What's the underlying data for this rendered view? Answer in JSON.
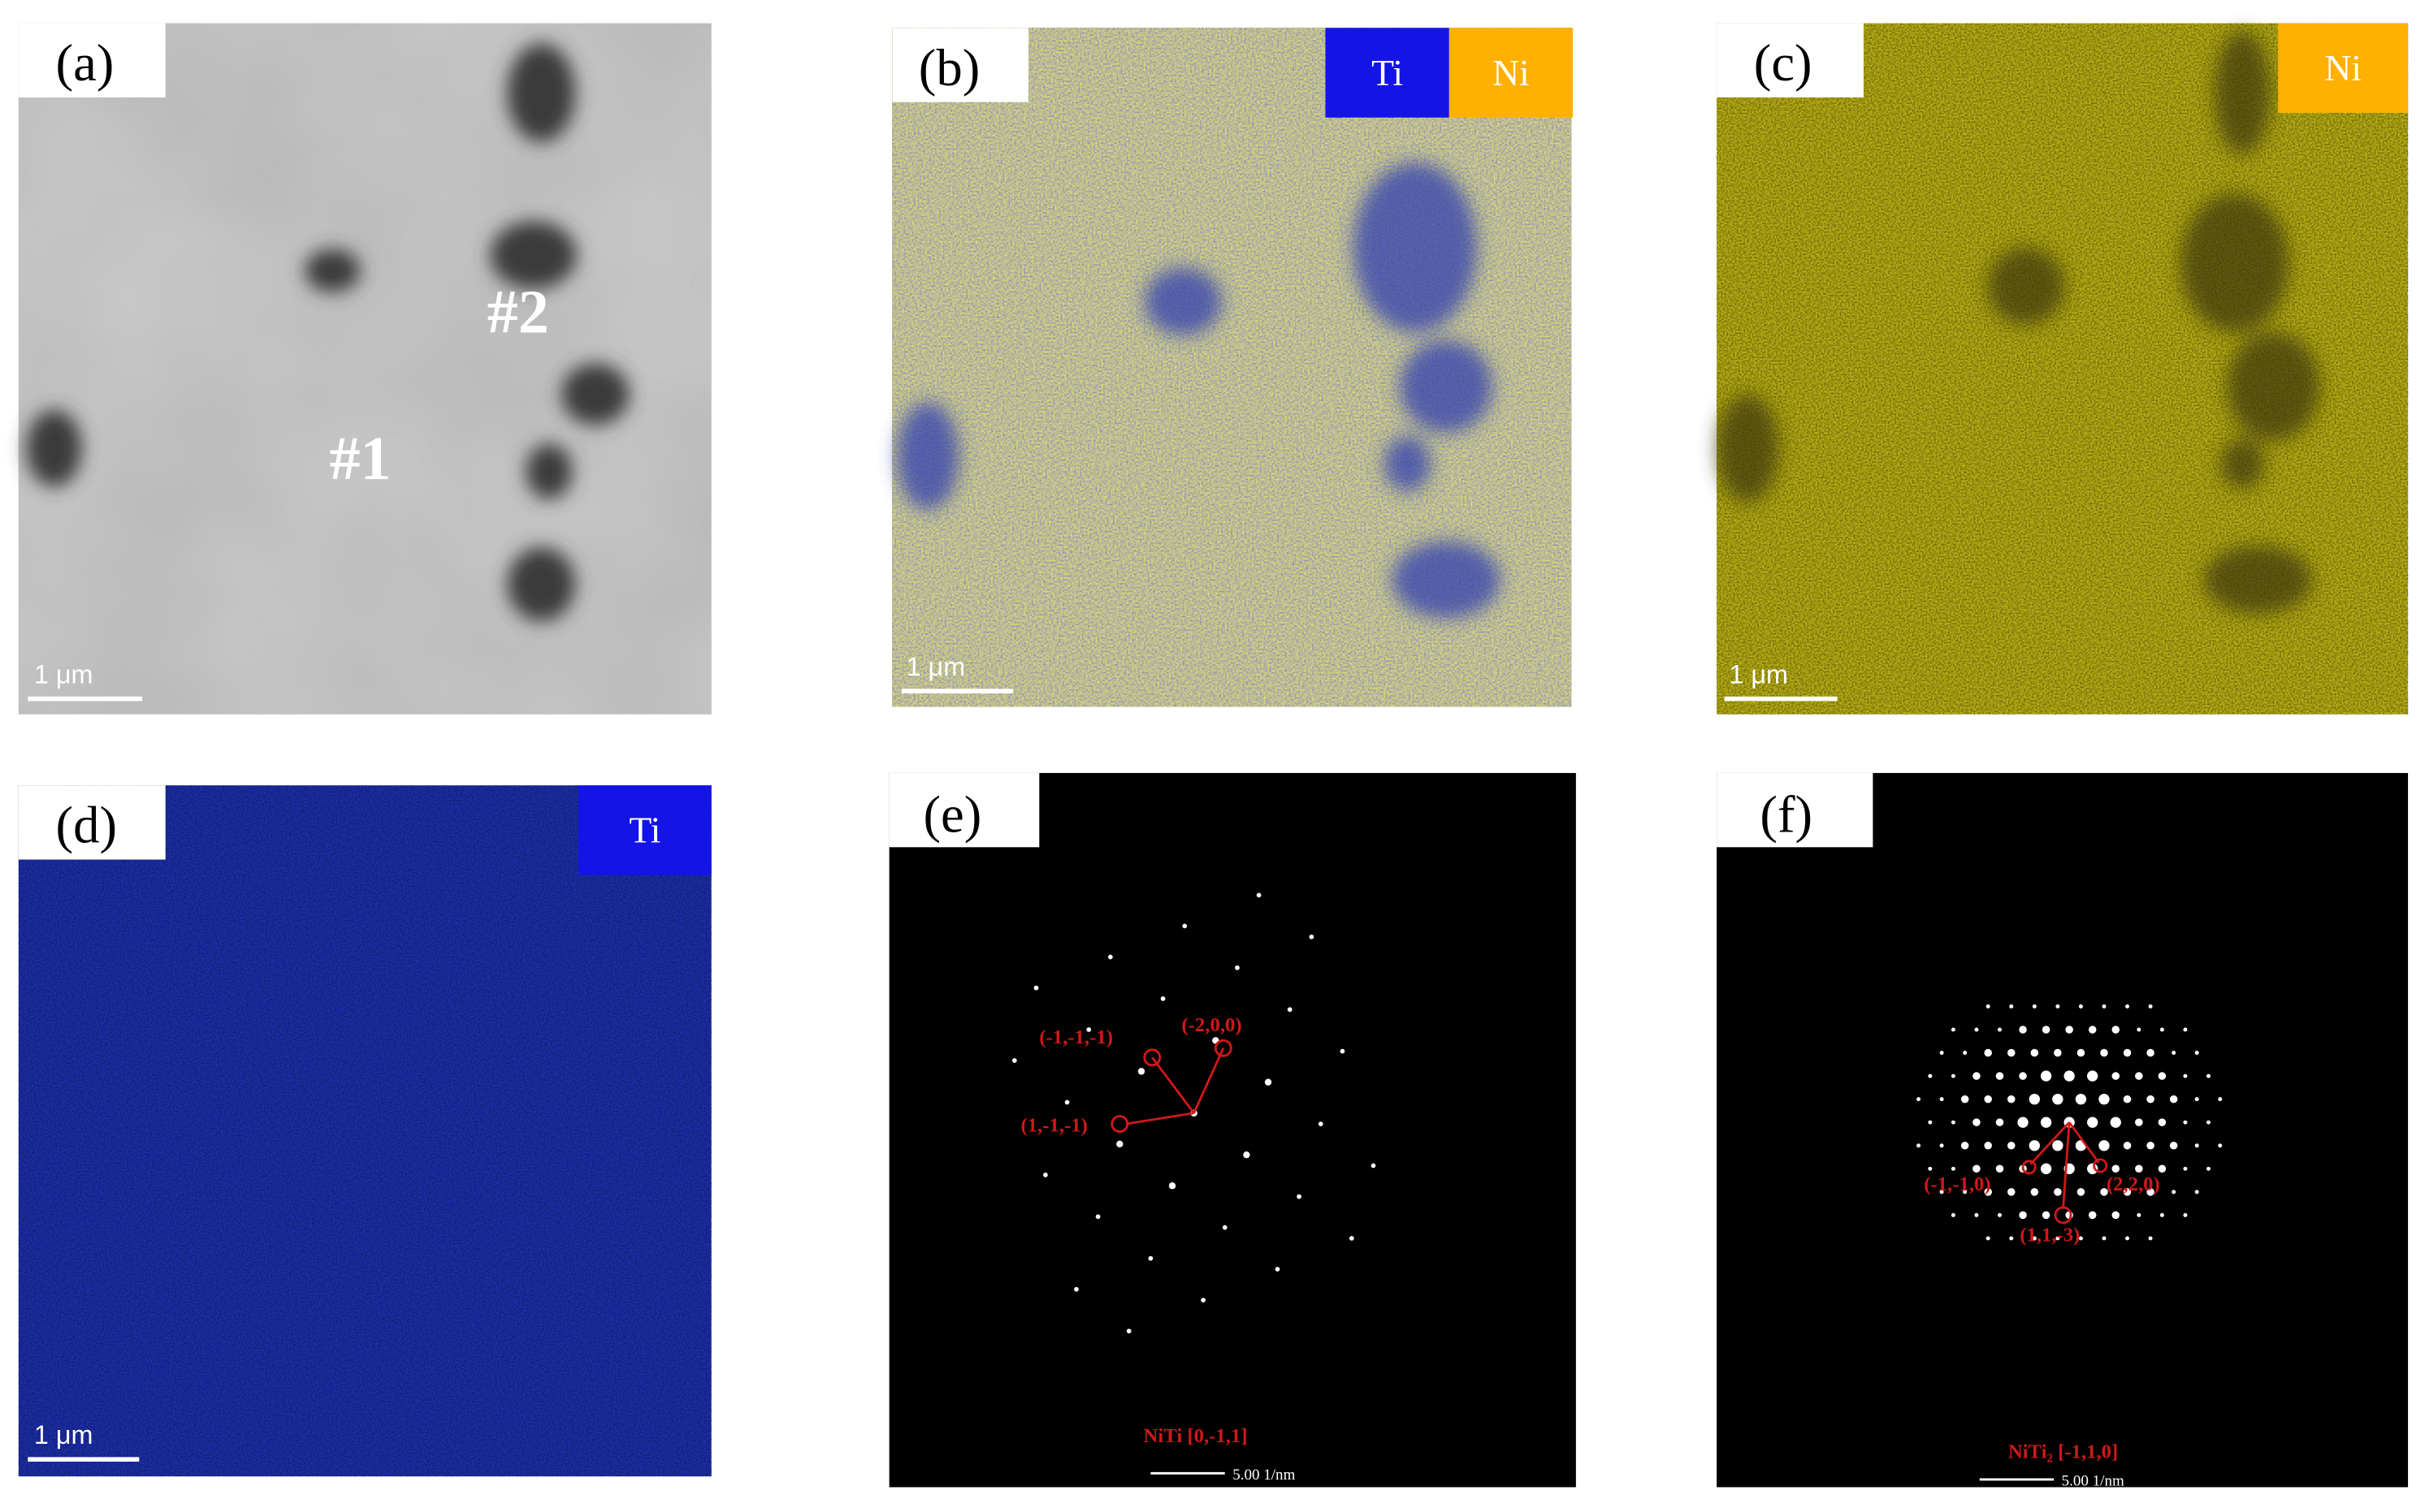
{
  "panels": [
    {
      "label": "(a)",
      "scale": "1 μm",
      "annotations": [
        "#1",
        "#2"
      ]
    },
    {
      "label": "(b)",
      "scale": "1 μm",
      "tags": [
        "Ti",
        "Ni"
      ]
    },
    {
      "label": "(c)",
      "scale": "1 μm",
      "tags": [
        "Ni"
      ]
    },
    {
      "label": "(d)",
      "scale": "1 μm",
      "tags": [
        "Ti"
      ]
    },
    {
      "label": "(e)",
      "scale": "5.00 1/nm",
      "annotations": [
        "(-1,-1,-1)",
        "(-2,0,0)",
        "(1,-1,-1)"
      ],
      "caption": "NiTi [0,-1,1]"
    },
    {
      "label": "(f)",
      "scale": "5.00 1/nm",
      "annotations": [
        "(-1,-1,0)",
        "(2,2,0)",
        "(1,1,-3)"
      ],
      "caption": "NiTi₂ [-1,1,0]"
    }
  ]
}
